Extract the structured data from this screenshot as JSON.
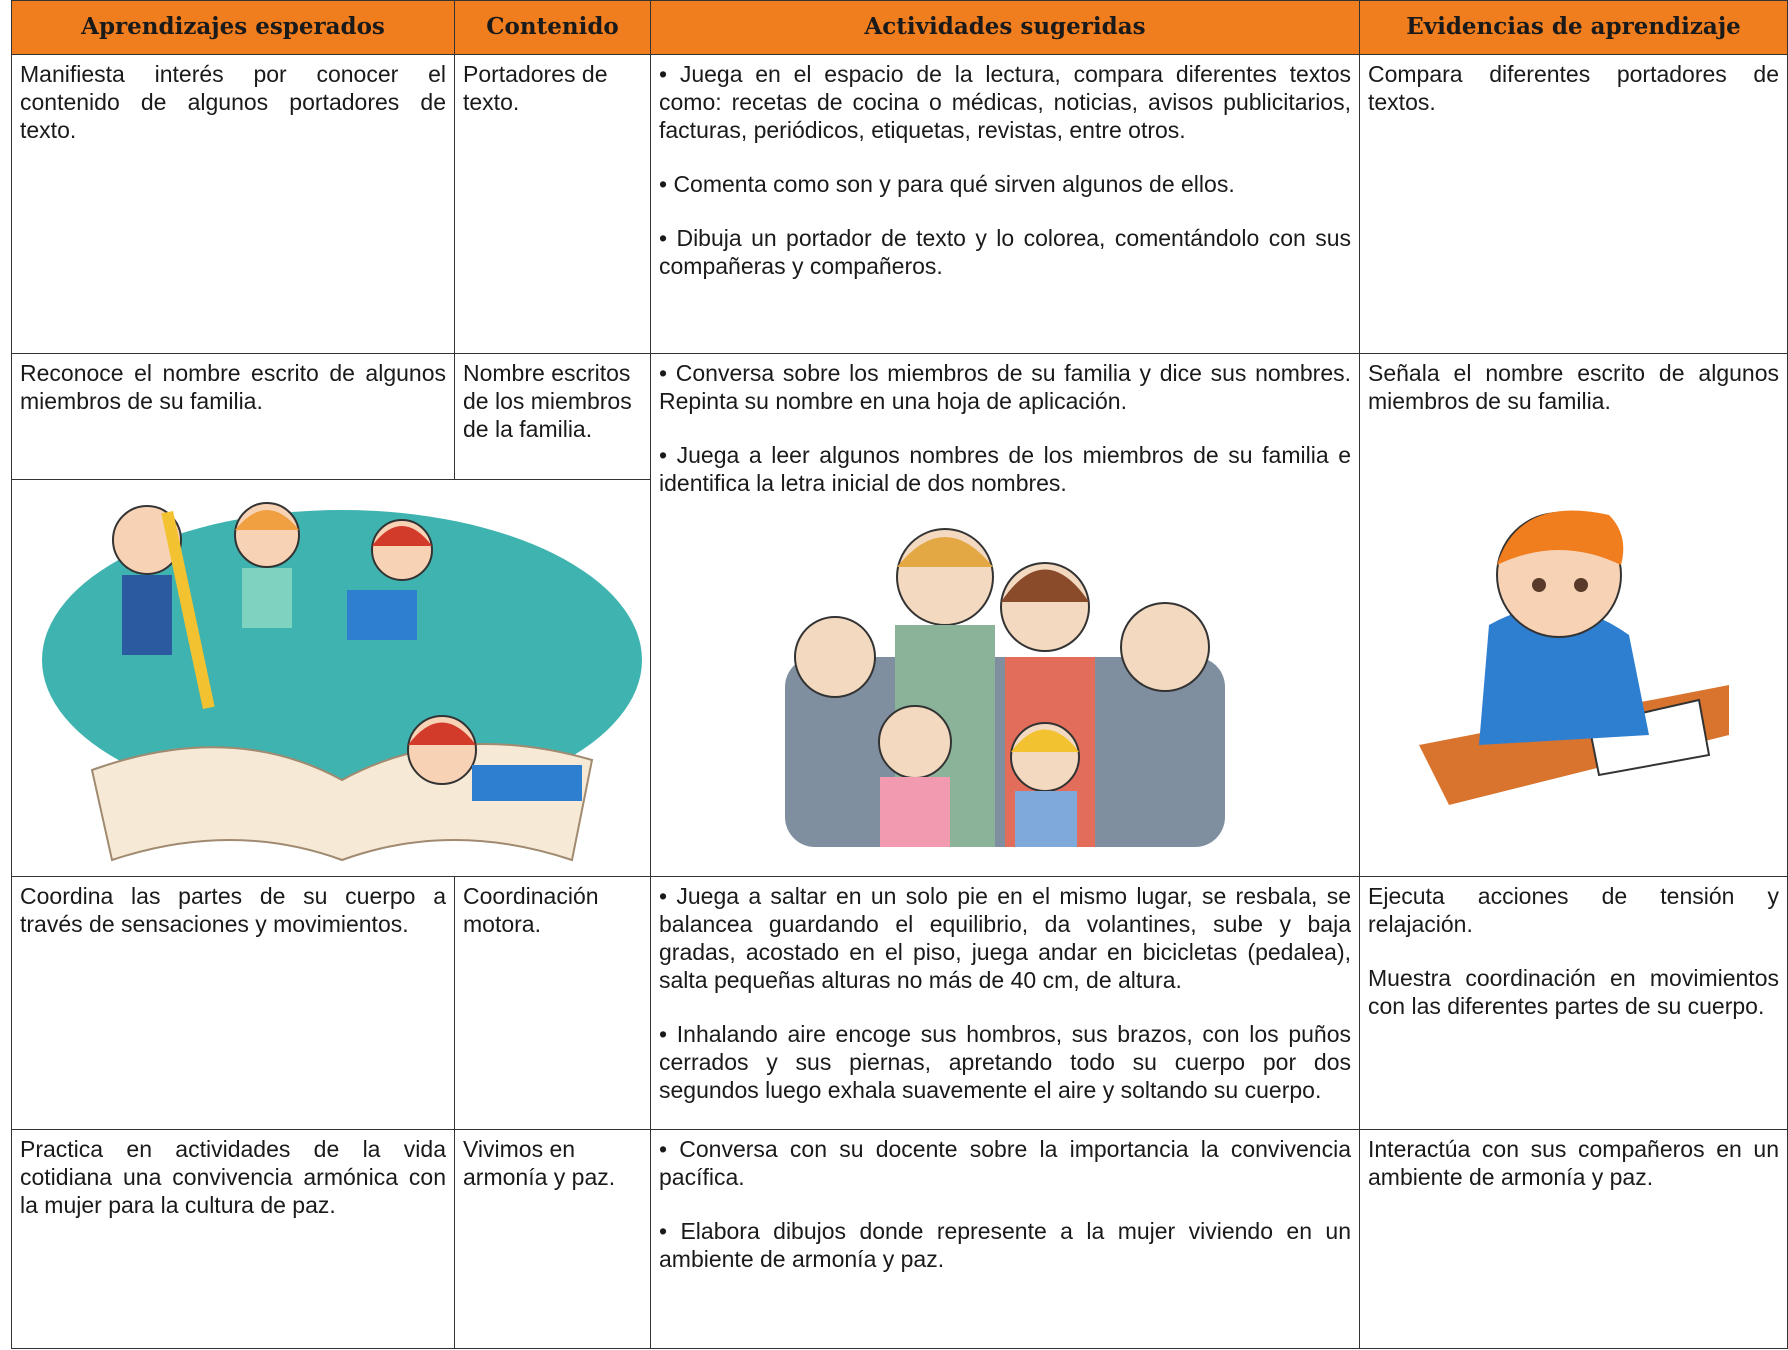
{
  "header": {
    "columns": [
      "Aprendizajes esperados",
      "Contenido",
      "Actividades sugeridas",
      "Evidencias de aprendizaje"
    ]
  },
  "rows": [
    {
      "aprendizaje": "Manifiesta interés por conocer el contenido de algunos portadores de texto.",
      "contenido": "Portadores de texto.",
      "actividades": [
        "• Juega en el espacio de la lectura, compara diferentes textos como: recetas de cocina o médicas, noticias, avisos publicitarios, facturas, periódicos, etiquetas, revistas, entre otros.",
        "• Comenta como son y para qué sirven algunos de ellos.",
        "• Dibuja un portador de texto y lo colorea, comentándolo con sus compañeras y compañeros."
      ],
      "evidencias": [
        "Compara diferentes portadores de textos."
      ]
    },
    {
      "aprendizaje": "Reconoce el nombre escrito de algunos miembros de su familia.",
      "contenido": "Nombre escritos de los miembros de la familia.",
      "actividades": [
        "• Conversa sobre los miembros de su familia y dice sus nombres. Repinta su nombre en una hoja de aplicación.",
        "• Juega a leer algunos nombres de los miembros de su familia e identifica la letra inicial de dos nombres."
      ],
      "evidencias": [
        "Señala el nombre escrito de algunos miembros de su familia."
      ]
    },
    {
      "aprendizaje": "Coordina las partes de su cuerpo a través de sensaciones y movimientos.",
      "contenido": "Coordinación motora.",
      "actividades": [
        "• Juega a saltar en un solo pie en el mismo lugar, se resbala, se balancea guardando el equilibrio, da volantines, sube y baja gradas, acostado en el piso, juega andar en bicicletas (pedalea), salta pequeñas alturas no más de 40 cm, de altura.",
        "• Inhalando aire encoge sus hombros, sus brazos, con los puños cerrados y sus piernas, apretando todo su cuerpo por dos segundos luego exhala suavemente el aire y soltando su cuerpo."
      ],
      "evidencias": [
        "Ejecuta acciones de tensión y relajación.",
        "Muestra coordinación en movimientos con las diferentes partes de su cuerpo."
      ]
    },
    {
      "aprendizaje": "Practica en actividades de la vida cotidiana una convivencia armónica con la mujer para la cultura de paz.",
      "contenido": "Vivimos en armonía y paz.",
      "actividades": [
        "• Conversa con su docente sobre la importancia la convivencia pacífica.",
        "• Elabora dibujos donde represente a la mujer viviendo en un ambiente de armonía y paz."
      ],
      "evidencias": [
        "Interactúa con sus compañeros en un ambiente de armonía y paz."
      ]
    }
  ]
}
